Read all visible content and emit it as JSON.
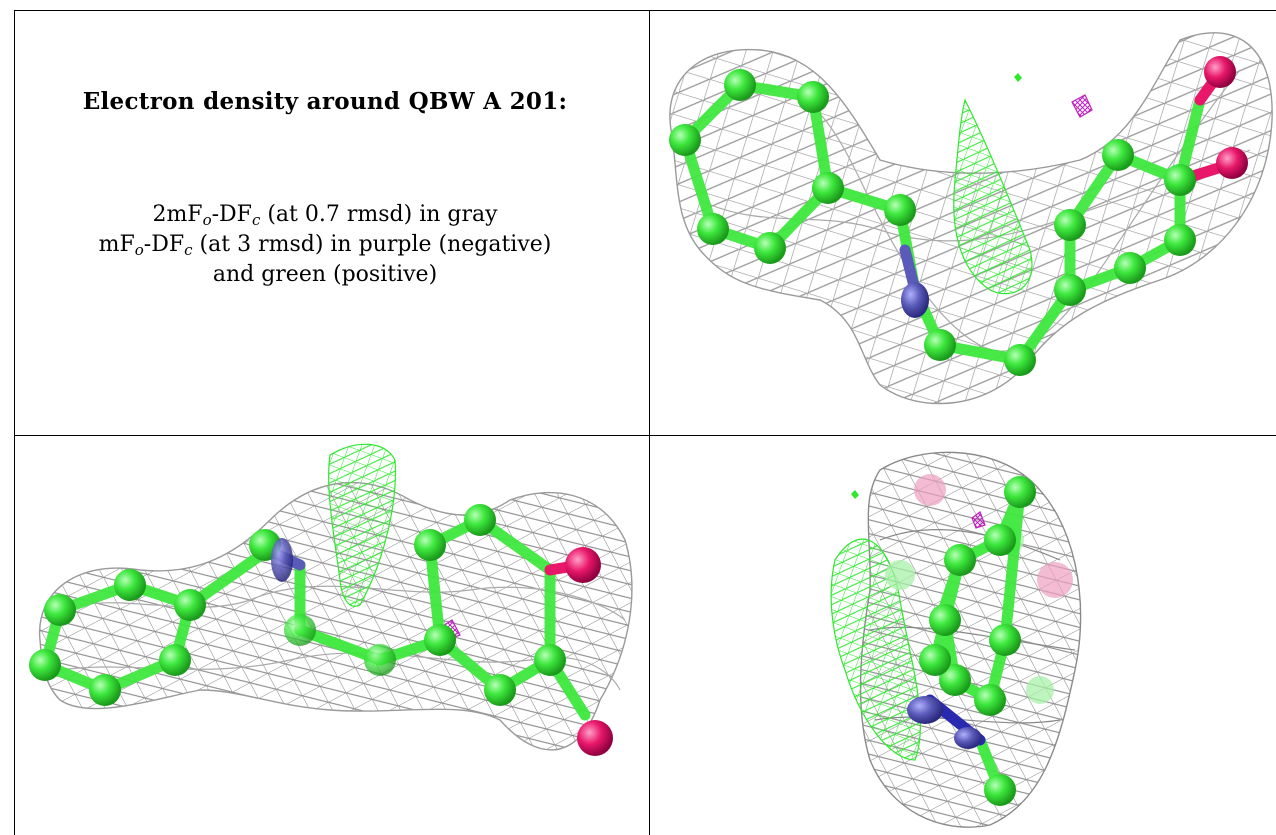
{
  "title": "Electron density around QBW A 201:",
  "legend": {
    "line1": {
      "pre": "2mF",
      "sub1": "o",
      "mid": "-DF",
      "sub2": "c",
      "post": " (at 0.7 rmsd) in gray"
    },
    "line2": {
      "pre": "mF",
      "sub1": "o",
      "mid": "-DF",
      "sub2": "c",
      "post": " (at 3 rmsd) in purple (negative)"
    },
    "line3": "and green (positive)"
  },
  "colors": {
    "mesh_gray": "#9a9a9a",
    "carbon": "#3ee83e",
    "nitrogen": "#5a5aa8",
    "oxygen": "#e8176a",
    "positive_density": "#2ee82e",
    "negative_density": "#c020c0"
  },
  "panels": [
    {
      "name": "view-top-right"
    },
    {
      "name": "view-bottom-left"
    },
    {
      "name": "view-bottom-right"
    }
  ]
}
